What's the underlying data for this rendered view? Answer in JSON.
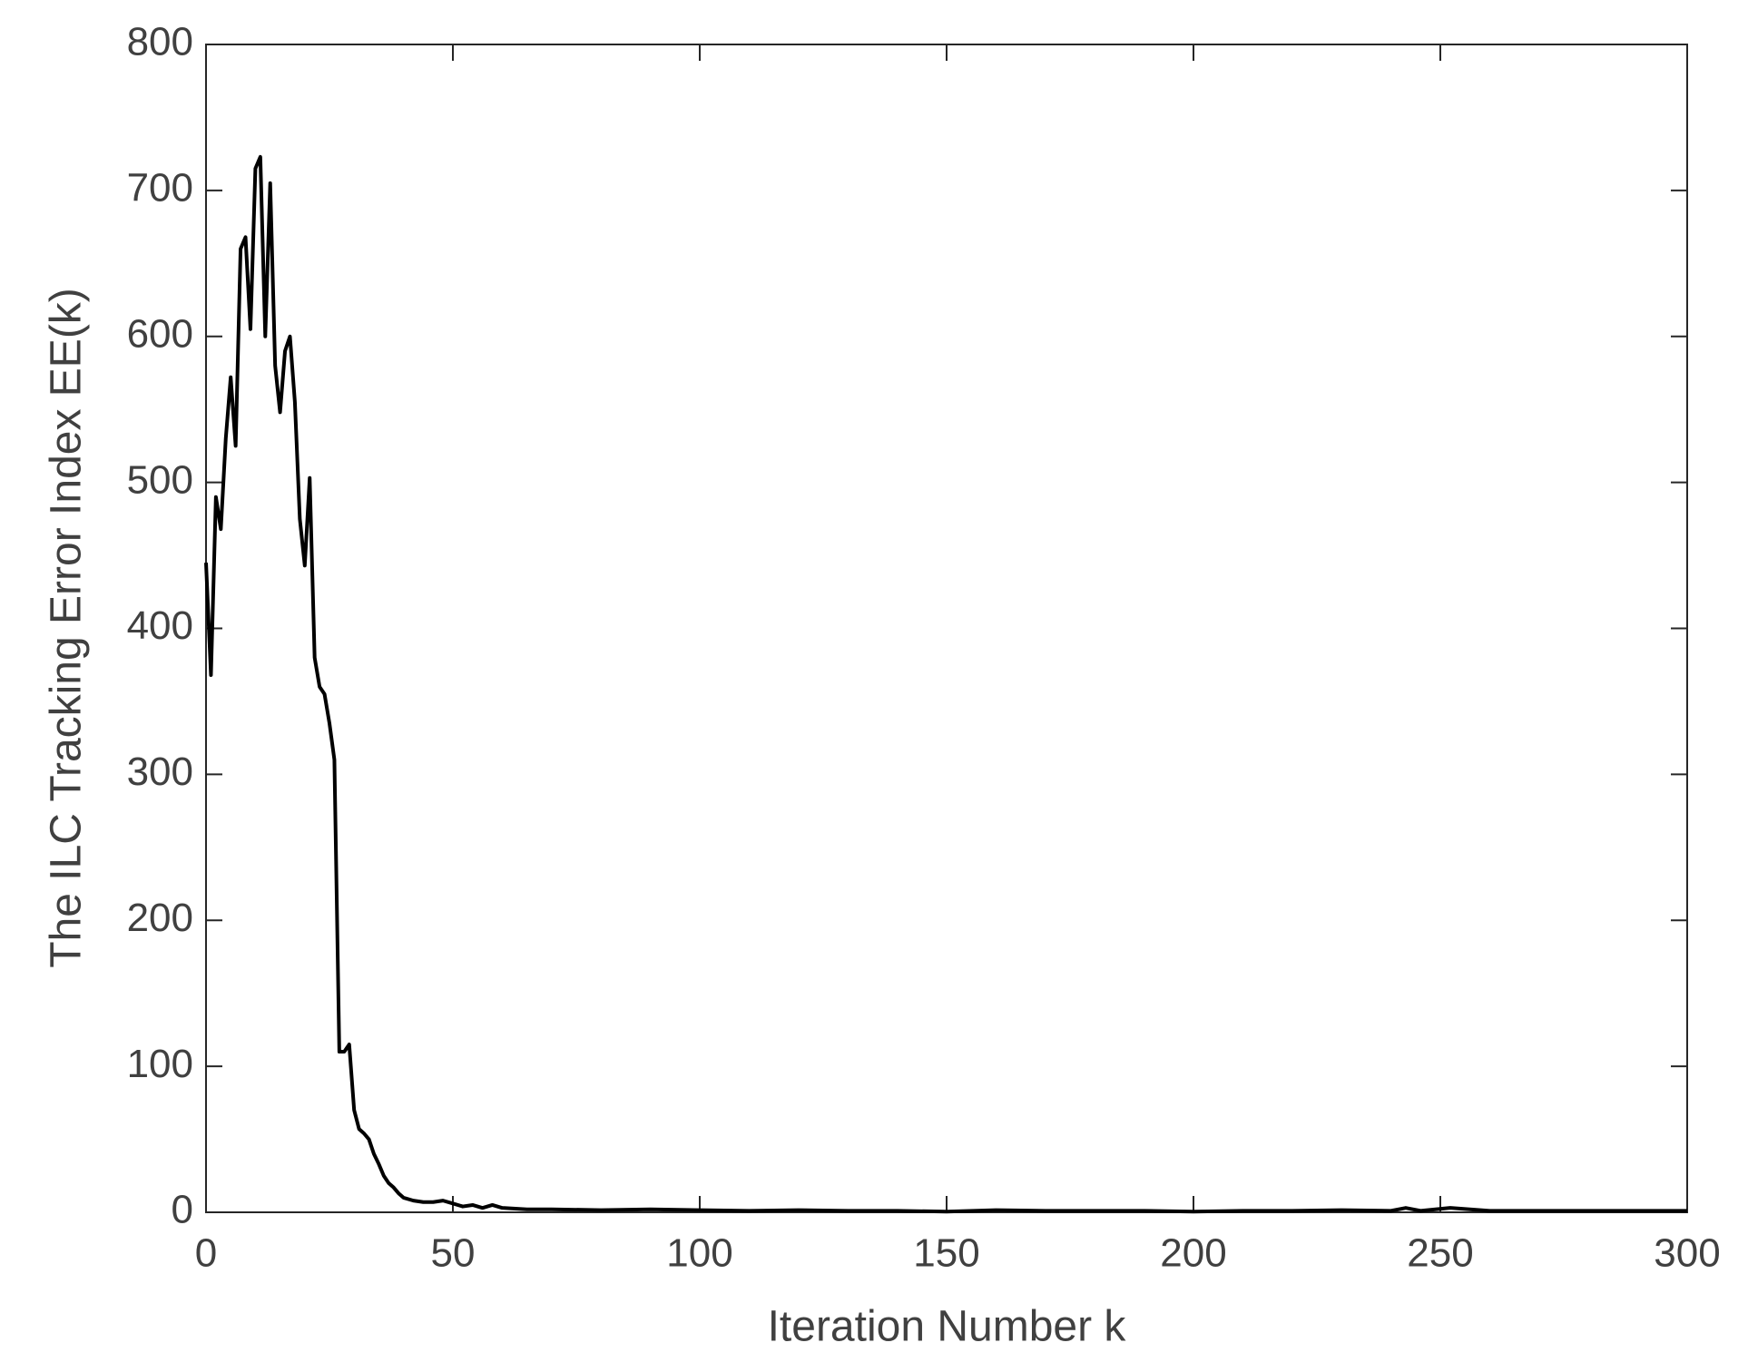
{
  "chart_data": {
    "type": "line",
    "xlabel": "Iteration Number k",
    "ylabel": "The ILC Tracking Error Index EE(k)",
    "x": [
      0,
      1,
      2,
      3,
      4,
      5,
      6,
      7,
      8,
      9,
      10,
      11,
      12,
      13,
      14,
      15,
      16,
      17,
      18,
      19,
      20,
      21,
      22,
      23,
      24,
      25,
      26,
      27,
      28,
      29,
      30,
      31,
      32,
      33,
      34,
      35,
      36,
      37,
      38,
      39,
      40,
      42,
      44,
      46,
      48,
      50,
      52,
      54,
      56,
      58,
      60,
      65,
      70,
      80,
      90,
      100,
      110,
      120,
      130,
      140,
      150,
      160,
      170,
      180,
      190,
      200,
      210,
      220,
      230,
      240,
      243,
      246,
      252,
      260,
      270,
      280,
      290,
      300
    ],
    "values": [
      445,
      368,
      490,
      468,
      530,
      572,
      525,
      660,
      668,
      605,
      715,
      723,
      600,
      705,
      580,
      548,
      590,
      600,
      555,
      475,
      443,
      503,
      380,
      360,
      355,
      335,
      310,
      110,
      110,
      115,
      70,
      57,
      54,
      50,
      40,
      33,
      25,
      20,
      17,
      13,
      10,
      8,
      7,
      7,
      8,
      6,
      4,
      5,
      3,
      5,
      3,
      2,
      2,
      1.5,
      2,
      1.5,
      1,
      1.5,
      1,
      1,
      0.5,
      1.5,
      1,
      1,
      1,
      0.5,
      1,
      1,
      1.5,
      1,
      3,
      1,
      3,
      1,
      1,
      1,
      1,
      1
    ],
    "color": "#000000",
    "xlim": [
      0,
      300
    ],
    "xticks": [
      0,
      50,
      100,
      150,
      200,
      250,
      300
    ],
    "ylim": [
      0,
      800
    ],
    "yticks": [
      0,
      100,
      200,
      300,
      400,
      500,
      600,
      700,
      800
    ],
    "grid": false
  }
}
